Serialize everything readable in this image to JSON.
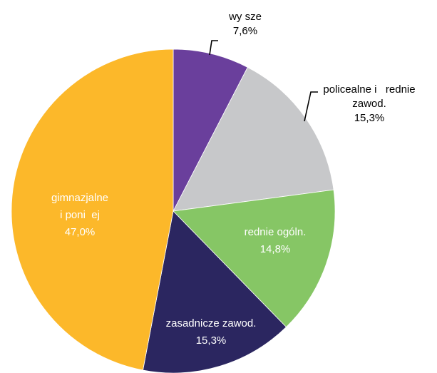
{
  "chart_data": {
    "type": "pie",
    "title": "",
    "start": "12 o'clock",
    "direction": "clockwise",
    "slices": [
      {
        "key": "wyzsze",
        "label": [
          "wy sze"
        ],
        "value_label": "7,6%",
        "value": 7.6,
        "color": "#6a3f9c",
        "label_color": "#000000",
        "label_position": "outside-top"
      },
      {
        "key": "policealne",
        "label": [
          "policealne i   rednie",
          "zawod."
        ],
        "value_label": "15,3%",
        "value": 15.3,
        "color": "#c7c8ca",
        "label_color": "#000000",
        "label_position": "outside-right"
      },
      {
        "key": "srednie-ogolne",
        "label": [
          "rednie ogóln."
        ],
        "value_label": "14,8%",
        "value": 14.8,
        "color": "#86c665",
        "label_color": "#ffffff",
        "label_position": "inside"
      },
      {
        "key": "zasadnicze",
        "label": [
          "zasadnicze zawod."
        ],
        "value_label": "15,3%",
        "value": 15.3,
        "color": "#2b2660",
        "label_color": "#ffffff",
        "label_position": "inside"
      },
      {
        "key": "gimnazjalne",
        "label": [
          "gimnazjalne",
          "i poni  ej"
        ],
        "value_label": "47,0%",
        "value": 47.0,
        "color": "#fcb82a",
        "label_color": "#ffffff",
        "label_position": "inside"
      }
    ]
  }
}
